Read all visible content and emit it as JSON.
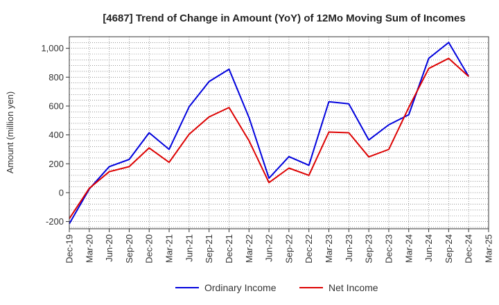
{
  "chart_data": {
    "type": "line",
    "title": "[4687]  Trend of Change in Amount (YoY) of 12Mo Moving Sum of Incomes",
    "ylabel": "Amount (million yen)",
    "xlabel": "",
    "ylim": [
      -250,
      1080
    ],
    "yticks": [
      -200,
      0,
      200,
      400,
      600,
      800,
      1000
    ],
    "ytick_labels": [
      "-200",
      "0",
      "200",
      "400",
      "600",
      "800",
      "1,000"
    ],
    "x": [
      "Dec-19",
      "Mar-20",
      "Jun-20",
      "Sep-20",
      "Dec-20",
      "Mar-21",
      "Jun-21",
      "Sep-21",
      "Dec-21",
      "Mar-22",
      "Jun-22",
      "Sep-22",
      "Dec-22",
      "Mar-23",
      "Jun-23",
      "Sep-23",
      "Dec-23",
      "Mar-24",
      "Jun-24",
      "Sep-24",
      "Dec-24",
      "Mar-25"
    ],
    "grid": true,
    "legend_position": "bottom",
    "series": [
      {
        "name": "Ordinary Income",
        "color": "#0000dd",
        "values": [
          -215,
          25,
          180,
          230,
          415,
          300,
          595,
          770,
          855,
          520,
          100,
          250,
          190,
          630,
          615,
          365,
          470,
          540,
          930,
          1040,
          805,
          null
        ]
      },
      {
        "name": "Net Income",
        "color": "#dd0000",
        "values": [
          -180,
          30,
          145,
          180,
          310,
          210,
          405,
          525,
          590,
          360,
          70,
          170,
          120,
          420,
          415,
          248,
          300,
          590,
          860,
          930,
          805,
          null
        ]
      }
    ]
  }
}
